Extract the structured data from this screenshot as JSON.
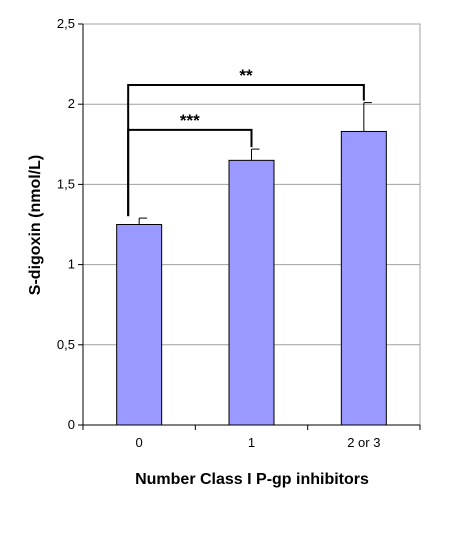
{
  "chart_data": {
    "type": "bar",
    "categories": [
      "0",
      "1",
      "2 or 3"
    ],
    "values": [
      1.25,
      1.65,
      1.83
    ],
    "error_upper": [
      1.29,
      1.72,
      2.01
    ],
    "xlabel": "Number Class I P-gp inhibitors",
    "ylabel": "S-digoxin (nmol/L)",
    "ylim": [
      0,
      2.5
    ],
    "yticks": [
      0,
      0.5,
      1,
      1.5,
      2,
      2.5
    ],
    "ytick_labels": [
      "0",
      "0,5",
      "1",
      "1,5",
      "2",
      "2,5"
    ],
    "grid": true,
    "bar_color": "#9999ff",
    "significance": [
      {
        "from": 0,
        "to": 2,
        "label": "**",
        "y": 2.12
      },
      {
        "from": 0,
        "to": 1,
        "label": "***",
        "y": 1.84
      }
    ]
  }
}
